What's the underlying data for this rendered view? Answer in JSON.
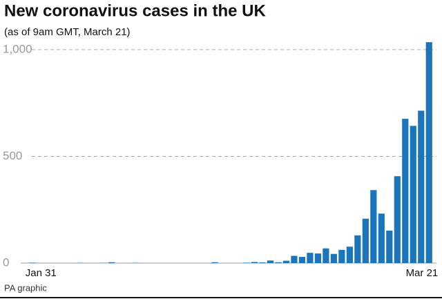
{
  "chart_data": {
    "type": "bar",
    "title": "New coronavirus cases in the UK",
    "subtitle": "(as of 9am GMT, March 21)",
    "source": "PA graphic",
    "categories": [
      "Jan 31",
      null,
      null,
      null,
      null,
      null,
      null,
      null,
      null,
      null,
      null,
      null,
      null,
      null,
      null,
      null,
      null,
      null,
      null,
      null,
      null,
      null,
      null,
      null,
      null,
      null,
      null,
      null,
      null,
      null,
      null,
      null,
      null,
      null,
      null,
      null,
      null,
      null,
      null,
      null,
      null,
      null,
      null,
      null,
      null,
      null,
      null,
      null,
      null,
      null,
      "Mar 21"
    ],
    "values": [
      2,
      0,
      0,
      0,
      0,
      0,
      1,
      0,
      0,
      1,
      4,
      0,
      0,
      1,
      0,
      0,
      0,
      0,
      0,
      0,
      0,
      0,
      0,
      4,
      0,
      0,
      0,
      2,
      5,
      3,
      12,
      4,
      11,
      34,
      29,
      48,
      45,
      69,
      43,
      62,
      77,
      130,
      208,
      342,
      232,
      152,
      407,
      676,
      643,
      714,
      1035
    ],
    "color": "#1b75bb",
    "ylim": [
      0,
      1100
    ],
    "yticks": [
      0,
      500,
      {
        "value": 1000,
        "label": "1,000"
      }
    ],
    "grid": true
  }
}
